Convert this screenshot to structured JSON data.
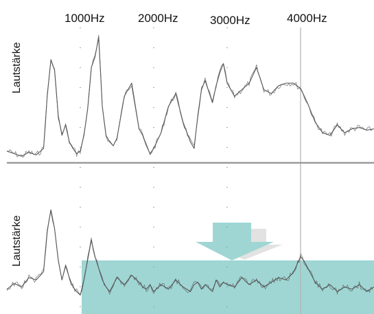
{
  "chart_data": {
    "type": "line",
    "title": "",
    "ylabel": "Lautstärke",
    "xlabel": "",
    "frequency_labels": [
      "1000Hz",
      "2000Hz",
      "3000Hz",
      "4000Hz"
    ],
    "frequency_values": [
      1000,
      2000,
      3000,
      4000
    ],
    "xlim": [
      0,
      5000
    ],
    "ylim": [
      0,
      100
    ],
    "grid": "dotted vertical lines at 1000, 2000, 3000 Hz; solid vertical line at 4000 Hz",
    "panels": [
      {
        "name": "top",
        "x": [
          0,
          100,
          200,
          300,
          400,
          500,
          550,
          600,
          650,
          700,
          750,
          800,
          850,
          900,
          950,
          1000,
          1050,
          1100,
          1150,
          1200,
          1250,
          1300,
          1350,
          1400,
          1450,
          1500,
          1600,
          1700,
          1800,
          1850,
          1900,
          1950,
          2000,
          2100,
          2200,
          2300,
          2400,
          2500,
          2550,
          2600,
          2650,
          2700,
          2800,
          2850,
          2900,
          2950,
          3000,
          3100,
          3200,
          3300,
          3400,
          3500,
          3600,
          3700,
          3800,
          3900,
          4000,
          4050,
          4100,
          4200,
          4300,
          4400,
          4500,
          4600,
          4700,
          4800,
          4900,
          5000
        ],
        "y": [
          8,
          6,
          4,
          7,
          5,
          10,
          50,
          78,
          70,
          35,
          20,
          28,
          15,
          10,
          6,
          8,
          20,
          40,
          72,
          80,
          95,
          42,
          20,
          15,
          12,
          18,
          50,
          60,
          25,
          20,
          12,
          6,
          10,
          22,
          42,
          52,
          30,
          15,
          10,
          35,
          55,
          62,
          45,
          58,
          68,
          75,
          60,
          50,
          55,
          60,
          72,
          55,
          52,
          58,
          60,
          60,
          56,
          50,
          44,
          30,
          22,
          20,
          28,
          22,
          25,
          26,
          24,
          25
        ]
      },
      {
        "name": "bottom",
        "x": [
          0,
          100,
          200,
          300,
          400,
          500,
          550,
          600,
          650,
          700,
          750,
          800,
          850,
          900,
          950,
          1000,
          1050,
          1100,
          1150,
          1200,
          1250,
          1300,
          1350,
          1400,
          1450,
          1500,
          1600,
          1700,
          1800,
          1850,
          1900,
          1950,
          2000,
          2100,
          2200,
          2300,
          2400,
          2500,
          2550,
          2600,
          2650,
          2700,
          2800,
          2850,
          2900,
          2950,
          3000,
          3100,
          3200,
          3300,
          3400,
          3500,
          3600,
          3700,
          3800,
          3900,
          4000,
          4050,
          4100,
          4200,
          4300,
          4400,
          4500,
          4600,
          4700,
          4800,
          4900,
          5000
        ],
        "y": [
          20,
          25,
          22,
          30,
          28,
          35,
          70,
          88,
          72,
          45,
          28,
          40,
          30,
          22,
          18,
          15,
          28,
          45,
          62,
          48,
          38,
          28,
          22,
          18,
          24,
          30,
          24,
          32,
          26,
          22,
          20,
          24,
          18,
          24,
          20,
          28,
          22,
          18,
          24,
          26,
          20,
          24,
          18,
          28,
          22,
          26,
          24,
          22,
          30,
          24,
          28,
          22,
          26,
          30,
          28,
          34,
          48,
          44,
          38,
          26,
          20,
          24,
          18,
          22,
          20,
          24,
          18,
          22
        ]
      }
    ],
    "colors": {
      "line": "#555555",
      "mask_band": "#9fd6d4",
      "arrow": "#9fd6d4",
      "arrow_shadow": "#e2e2e2",
      "divider": "#9a9a9a",
      "grid": "#888888"
    }
  }
}
